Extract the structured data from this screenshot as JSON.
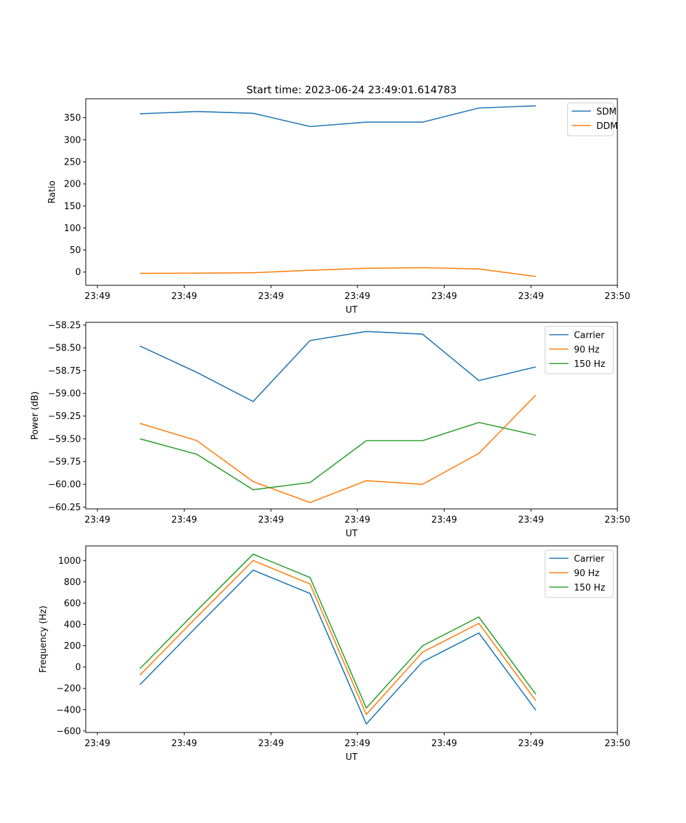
{
  "chart_data": [
    {
      "type": "line",
      "title": "Start time: 2023-06-24 23:49:01.614783",
      "xlabel": "UT",
      "ylabel": "Ratio",
      "x_tick_labels": [
        "23:49",
        "23:49",
        "23:49",
        "23:49",
        "23:49",
        "23:49",
        "23:50"
      ],
      "y_ticks": [
        0,
        50,
        100,
        150,
        200,
        250,
        300,
        350
      ],
      "ylim": [
        -30,
        393
      ],
      "grid": false,
      "legend_position": "top-right",
      "series": [
        {
          "name": "SDM",
          "color": "#1f77b4",
          "values": [
            359,
            364,
            360,
            330,
            340,
            340,
            372,
            377
          ]
        },
        {
          "name": "DDM",
          "color": "#ff7f0e",
          "values": [
            -3,
            -2.5,
            -1.5,
            4,
            8.5,
            10,
            7,
            -10
          ]
        }
      ]
    },
    {
      "type": "line",
      "title": "",
      "xlabel": "UT",
      "ylabel": "Power (dB)",
      "x_tick_labels": [
        "23:49",
        "23:49",
        "23:49",
        "23:49",
        "23:49",
        "23:49",
        "23:50"
      ],
      "y_ticks": [
        -60.25,
        -60.0,
        -59.75,
        -59.5,
        -59.25,
        -59.0,
        -58.75,
        -58.5,
        -58.25
      ],
      "y_tick_labels": [
        "−60.25",
        "−60.00",
        "−59.75",
        "−59.50",
        "−59.25",
        "−59.00",
        "−58.75",
        "−58.50",
        "−58.25"
      ],
      "ylim": [
        -60.27,
        -58.22
      ],
      "grid": false,
      "legend_position": "top-right",
      "series": [
        {
          "name": "Carrier",
          "color": "#1f77b4",
          "values": [
            -58.48,
            -58.77,
            -59.09,
            -58.42,
            -58.32,
            -58.35,
            -58.86,
            -58.71
          ]
        },
        {
          "name": "90 Hz",
          "color": "#ff7f0e",
          "values": [
            -59.33,
            -59.52,
            -59.97,
            -60.2,
            -59.96,
            -60.0,
            -59.66,
            -59.02
          ]
        },
        {
          "name": "150 Hz",
          "color": "#2ca02c",
          "values": [
            -59.5,
            -59.67,
            -60.06,
            -59.98,
            -59.52,
            -59.52,
            -59.32,
            -59.46
          ]
        }
      ]
    },
    {
      "type": "line",
      "title": "",
      "xlabel": "UT",
      "ylabel": "Frequency (Hz)",
      "x_tick_labels": [
        "23:49",
        "23:49",
        "23:49",
        "23:49",
        "23:49",
        "23:49",
        "23:50"
      ],
      "y_ticks": [
        -600,
        -400,
        -200,
        0,
        200,
        400,
        600,
        800,
        1000
      ],
      "y_tick_labels": [
        "−600",
        "−400",
        "−200",
        "0",
        "200",
        "400",
        "600",
        "800",
        "1000"
      ],
      "ylim": [
        -614,
        1137
      ],
      "grid": false,
      "legend_position": "top-right",
      "series": [
        {
          "name": "Carrier",
          "color": "#1f77b4",
          "values": [
            -165,
            380,
            910,
            690,
            -535,
            50,
            320,
            -405
          ]
        },
        {
          "name": "90 Hz",
          "color": "#ff7f0e",
          "values": [
            -75,
            470,
            1000,
            780,
            -445,
            140,
            410,
            -315
          ]
        },
        {
          "name": "150 Hz",
          "color": "#2ca02c",
          "values": [
            -15,
            530,
            1060,
            840,
            -385,
            200,
            470,
            -255
          ]
        }
      ]
    }
  ]
}
